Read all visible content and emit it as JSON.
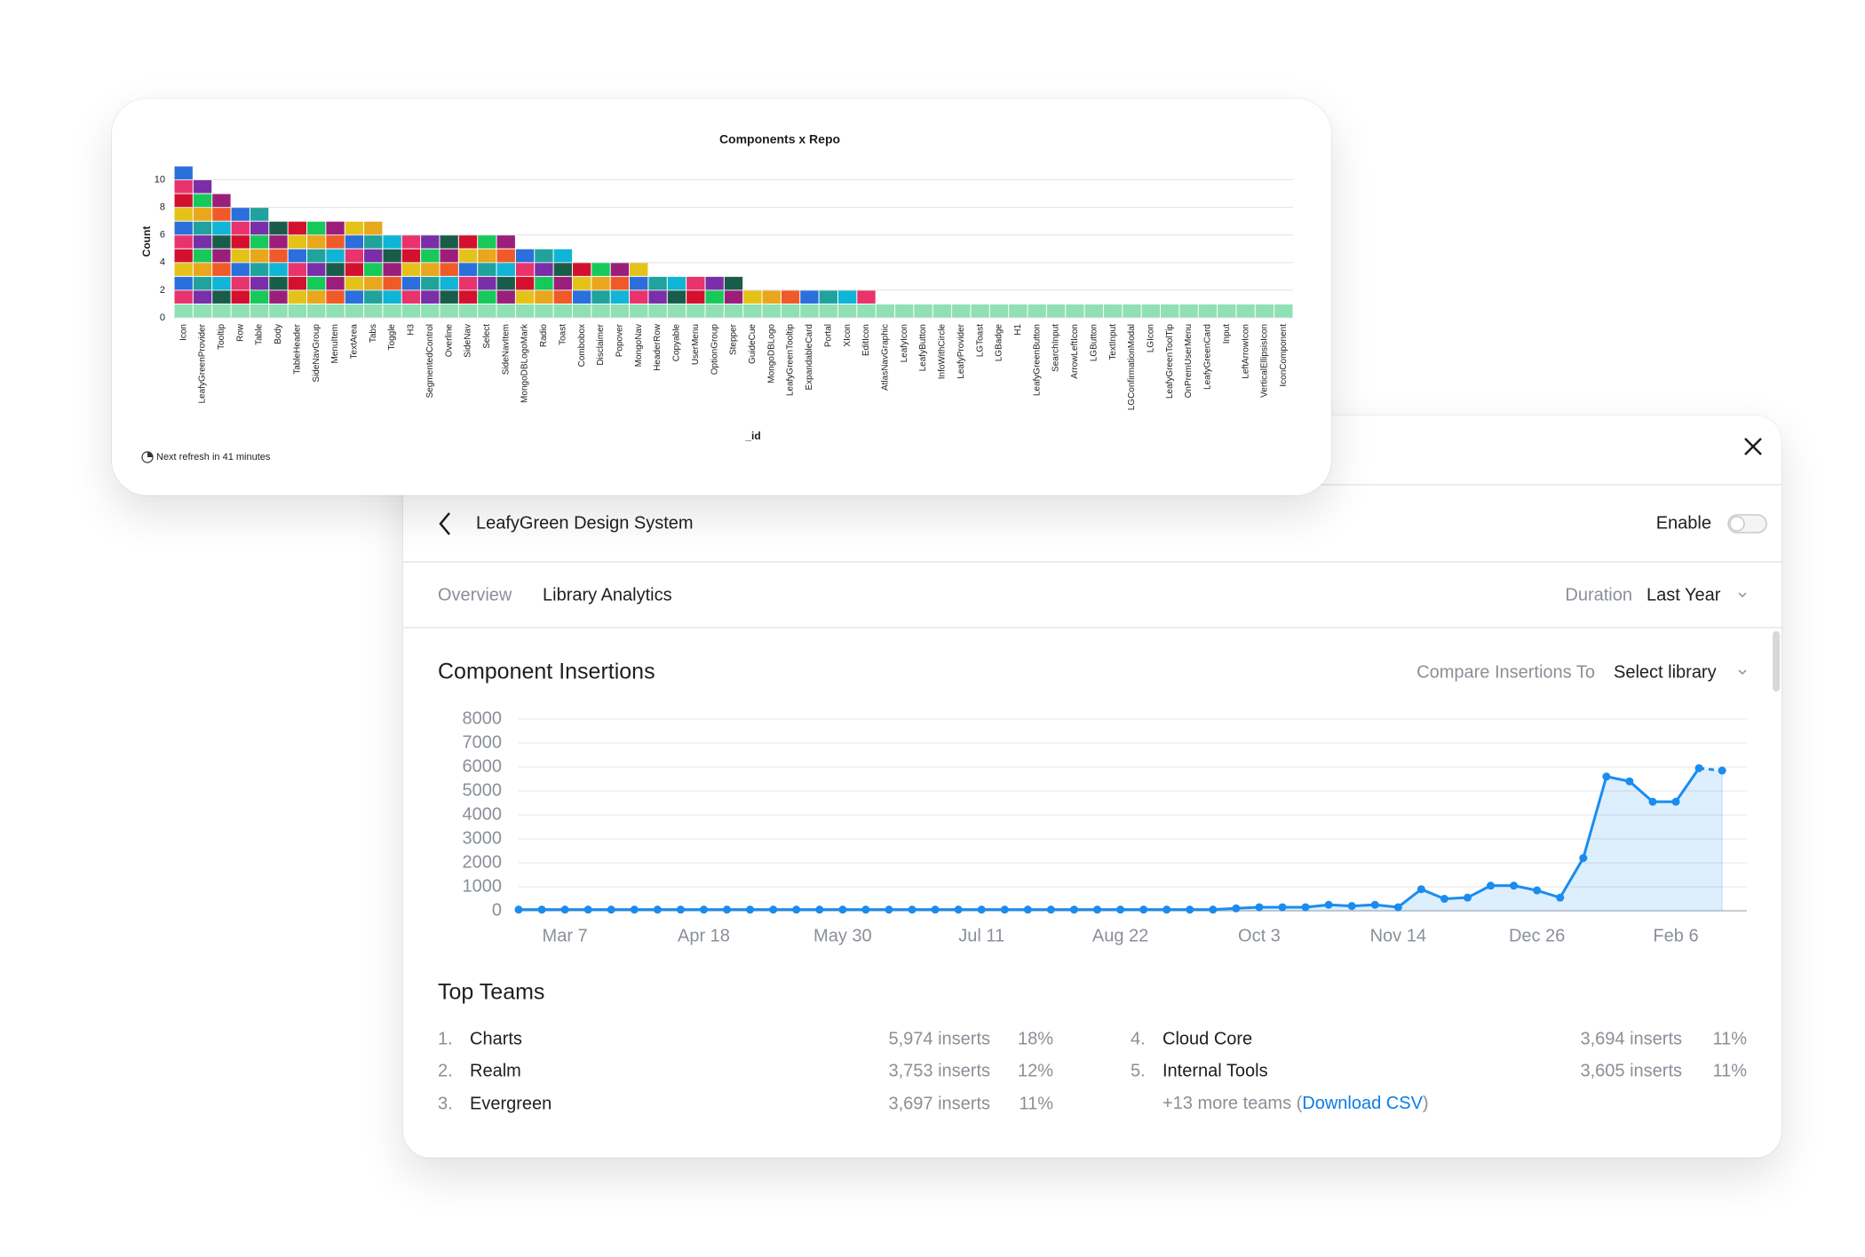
{
  "chart_data": [
    {
      "type": "stacked-units",
      "title": "Components x Repo",
      "y_label": "Count",
      "x_label": "_id",
      "footnote": "Next refresh in 41 minutes",
      "categories": [
        "Icon",
        "LeafyGreenProvider",
        "Tooltip",
        "Row",
        "Table",
        "Body",
        "TableHeader",
        "SideNavGroup",
        "MenuItem",
        "TextArea",
        "Tabs",
        "Toggle",
        "H3",
        "SegmentedControl",
        "Overline",
        "SideNav",
        "Select",
        "SideNavItem",
        "MongoDBLogoMark",
        "Radio",
        "Toast",
        "Combobox",
        "Disclaimer",
        "Popover",
        "MongoNav",
        "HeaderRow",
        "Copyable",
        "UserMenu",
        "OptionGroup",
        "Stepper",
        "GuideCue",
        "MongoDBLogo",
        "LeafyGreenTooltip",
        "ExpandableCard",
        "Portal",
        "XIcon",
        "EditIcon",
        "AtlasNavGraphic",
        "LeafyIcon",
        "LeafyButton",
        "InfoWithCircle",
        "LeafyProvider",
        "LGToast",
        "LGBadge",
        "H1",
        "LeafyGreenButton",
        "SearchInput",
        "ArrowLeftIcon",
        "LGButton",
        "TextInput",
        "LGConfirmationModal",
        "LGIcon",
        "LeafyGreenToolTip",
        "OnPremUserMenu",
        "LeafyGreenCard",
        "Input",
        "LeftArrowIcon",
        "VerticalEllipsisIcon",
        "IconComponent"
      ],
      "values": [
        11,
        10,
        9,
        8,
        8,
        7,
        7,
        7,
        7,
        7,
        7,
        6,
        6,
        6,
        6,
        6,
        6,
        6,
        5,
        5,
        5,
        4,
        4,
        4,
        4,
        3,
        3,
        3,
        3,
        3,
        2,
        2,
        2,
        2,
        2,
        2,
        2,
        1,
        1,
        1,
        1,
        1,
        1,
        1,
        1,
        1,
        1,
        1,
        1,
        1,
        1,
        1,
        1,
        1,
        1,
        1,
        1,
        1,
        1
      ],
      "colors": [
        "#8fe0b4",
        "#d4102f",
        "#1fa39c",
        "#9b1f7a",
        "#e8336d",
        "#e8a71c",
        "#1a5c4a",
        "#2a6fdb",
        "#16c95a",
        "#0fb4d6",
        "#e5c21a",
        "#7a2ea8",
        "#f05a28"
      ],
      "ylim": [
        0,
        11
      ],
      "yticks": [
        0,
        2,
        4,
        6,
        8,
        10
      ],
      "grid": true
    },
    {
      "type": "line",
      "title": "Component Insertions",
      "categories": [
        null,
        null,
        "Mar 7",
        null,
        null,
        null,
        null,
        null,
        "Apr 18",
        null,
        null,
        null,
        null,
        null,
        "May 30",
        null,
        null,
        null,
        null,
        null,
        "Jul 11",
        null,
        null,
        null,
        null,
        null,
        "Aug 22",
        null,
        null,
        null,
        null,
        null,
        "Oct 3",
        null,
        null,
        null,
        null,
        null,
        "Nov 14",
        null,
        null,
        null,
        null,
        null,
        "Dec 26",
        null,
        null,
        null,
        null,
        null,
        "Feb 6",
        null,
        null
      ],
      "series": [
        {
          "name": "Insertions",
          "color": "#1a8cf0",
          "values": [
            50,
            50,
            50,
            50,
            50,
            50,
            50,
            50,
            50,
            50,
            50,
            50,
            50,
            50,
            50,
            50,
            50,
            50,
            50,
            50,
            50,
            50,
            50,
            50,
            50,
            50,
            50,
            50,
            50,
            50,
            50,
            100,
            150,
            150,
            150,
            250,
            200,
            250,
            150,
            900,
            500,
            550,
            1050,
            1050,
            850,
            550,
            2200,
            5600,
            5400,
            4550,
            4550,
            5950,
            5850
          ]
        }
      ],
      "ylim": [
        0,
        8000
      ],
      "yticks": [
        0,
        1000,
        2000,
        3000,
        4000,
        5000,
        6000,
        7000,
        8000
      ],
      "grid": true
    }
  ],
  "panel": {
    "title": "LeafyGreen Design System",
    "enable_label": "Enable",
    "tabs": [
      "Overview",
      "Library Analytics"
    ],
    "duration_label": "Duration",
    "duration_value": "Last Year",
    "compare_label": "Compare Insertions To",
    "compare_value": "Select library",
    "teams_title": "Top Teams",
    "teams": [
      {
        "rank": "1.",
        "name": "Charts",
        "inserts": "5,974 inserts",
        "share": "18%"
      },
      {
        "rank": "2.",
        "name": "Realm",
        "inserts": "3,753 inserts",
        "share": "12%"
      },
      {
        "rank": "3.",
        "name": "Evergreen",
        "inserts": "3,697 inserts",
        "share": "11%"
      },
      {
        "rank": "4.",
        "name": "Cloud Core",
        "inserts": "3,694 inserts",
        "share": "11%"
      },
      {
        "rank": "5.",
        "name": "Internal Tools",
        "inserts": "3,605 inserts",
        "share": "11%"
      }
    ],
    "more_teams": "+13 more teams (",
    "download_link": "Download CSV",
    "more_teams_end": ")"
  }
}
